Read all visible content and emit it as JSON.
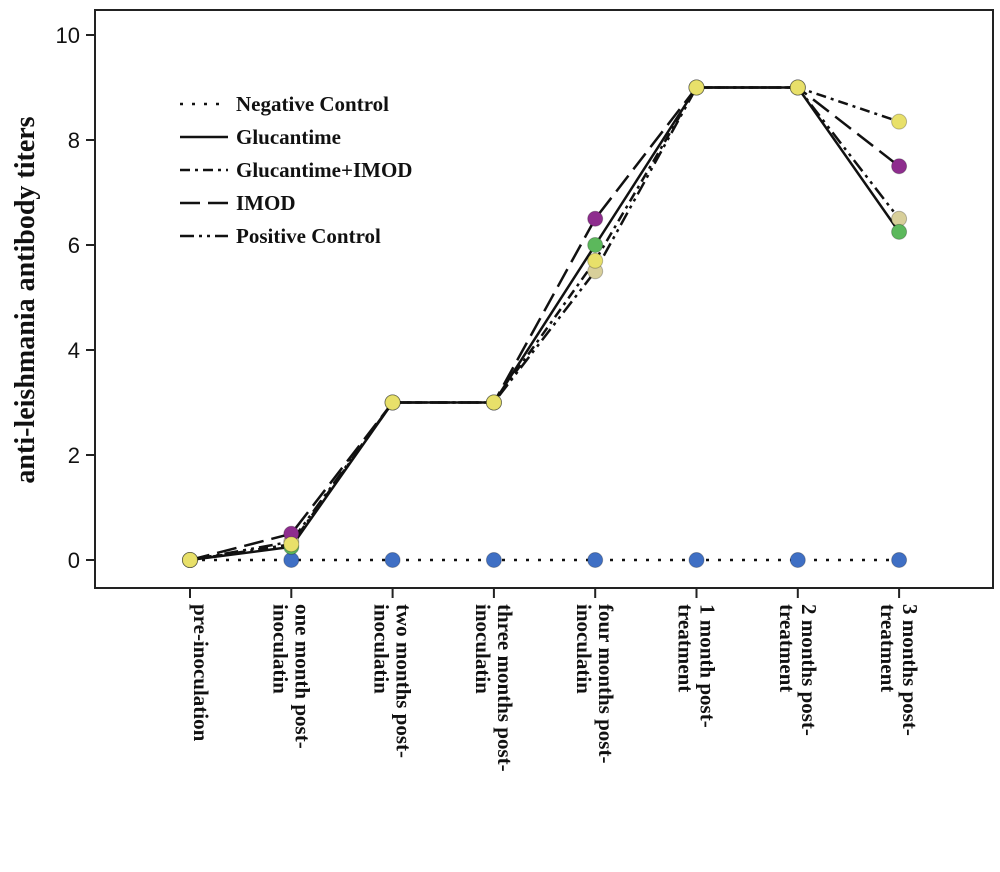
{
  "chart_data": {
    "type": "line",
    "title": "",
    "ylabel": "anti-leishmania antibody titers",
    "xlabel": "",
    "ylim": [
      0,
      10
    ],
    "yticks": [
      0,
      2,
      4,
      6,
      8,
      10
    ],
    "grid": false,
    "legend_position": "top-left",
    "categories": [
      "pre-inoculation",
      "one month post-inoculatin",
      "two months post-inoculatin",
      "three months post-inoculatin",
      "four months post-inoculatin",
      "1 month post-treatment",
      "2 months post-treatment",
      "3 months post-treatment"
    ],
    "category_lines": [
      [
        "pre-inoculation"
      ],
      [
        "one month post-",
        "inoculatin"
      ],
      [
        "two months post-",
        "inoculatin"
      ],
      [
        "three months post-",
        "inoculatin"
      ],
      [
        "four months post-",
        "inoculatin"
      ],
      [
        "1 month post-",
        "treatment"
      ],
      [
        "2 months post-",
        "treatment"
      ],
      [
        "3 months post-",
        "treatment"
      ]
    ],
    "series": [
      {
        "name": "Negative Control",
        "dash": "dotted",
        "marker_color": "#3f6fc4",
        "values": [
          0,
          0,
          0,
          0,
          0,
          0,
          0,
          0
        ]
      },
      {
        "name": "Glucantime",
        "dash": "solid",
        "marker_color": "#5cb85c",
        "values": [
          0,
          0.25,
          3,
          3,
          6,
          9,
          9,
          6.25
        ]
      },
      {
        "name": "Glucantime+IMOD",
        "dash": "dashdot",
        "marker_color": "#e8e06a",
        "values": [
          0,
          0.3,
          3,
          3,
          5.7,
          9,
          9,
          8.35
        ]
      },
      {
        "name": "IMOD",
        "dash": "longdash",
        "marker_color": "#8e2d8e",
        "values": [
          0,
          0.5,
          3,
          3,
          6.5,
          9,
          9,
          7.5
        ]
      },
      {
        "name": "Positive Control",
        "dash": "dashdotdot",
        "marker_color": "#d8cf9a",
        "values": [
          0,
          0.35,
          3,
          3,
          5.5,
          9,
          9,
          6.5
        ]
      }
    ]
  }
}
